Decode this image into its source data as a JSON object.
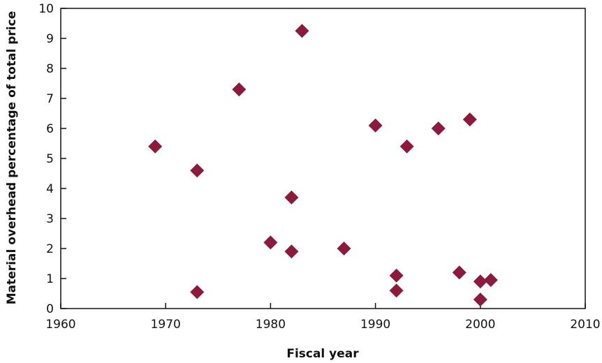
{
  "chart_data": {
    "type": "scatter",
    "title": "",
    "xlabel": "Fiscal year",
    "ylabel": "Material overhead percentage of total price",
    "xlim": [
      1960,
      2010
    ],
    "ylim": [
      0,
      10
    ],
    "x_ticks": [
      1960,
      1970,
      1980,
      1990,
      2000,
      2010
    ],
    "y_ticks": [
      0,
      1,
      2,
      3,
      4,
      5,
      6,
      7,
      8,
      9,
      10
    ],
    "grid": false,
    "legend": "none",
    "marker": "diamond",
    "marker_color": "#8b1a3c",
    "series": [
      {
        "points": [
          {
            "x": 1969,
            "y": 5.4
          },
          {
            "x": 1973,
            "y": 4.6
          },
          {
            "x": 1973,
            "y": 0.55
          },
          {
            "x": 1977,
            "y": 7.3
          },
          {
            "x": 1980,
            "y": 2.2
          },
          {
            "x": 1982,
            "y": 3.7
          },
          {
            "x": 1982,
            "y": 1.9
          },
          {
            "x": 1983,
            "y": 9.25
          },
          {
            "x": 1987,
            "y": 2.0
          },
          {
            "x": 1990,
            "y": 6.1
          },
          {
            "x": 1992,
            "y": 1.1
          },
          {
            "x": 1992,
            "y": 0.6
          },
          {
            "x": 1993,
            "y": 5.4
          },
          {
            "x": 1996,
            "y": 6.0
          },
          {
            "x": 1998,
            "y": 1.2
          },
          {
            "x": 1999,
            "y": 6.3
          },
          {
            "x": 2000,
            "y": 0.9
          },
          {
            "x": 2000,
            "y": 0.3
          },
          {
            "x": 2001,
            "y": 0.95
          }
        ]
      }
    ]
  }
}
